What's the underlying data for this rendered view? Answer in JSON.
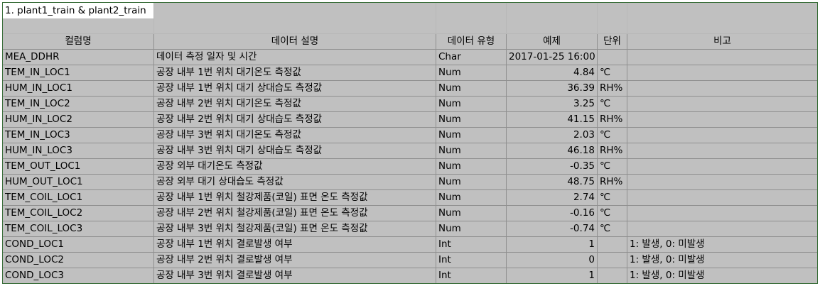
{
  "sheet_title": "1. plant1_train & plant2_train",
  "headers": {
    "column_name": "컬럼명",
    "description": "데이터 설명",
    "data_type": "데이터 유형",
    "example": "예제",
    "unit": "단위",
    "note": "비고"
  },
  "rows": [
    {
      "name": "MEA_DDHR",
      "desc": "데이터 측정 일자 및 시간",
      "type": "Char",
      "example": "2017-01-25 16:00",
      "unit": "",
      "note": ""
    },
    {
      "name": "TEM_IN_LOC1",
      "desc": "공장 내부 1번 위치 대기온도 측정값",
      "type": "Num",
      "example": "4.84",
      "unit": "℃",
      "note": ""
    },
    {
      "name": "HUM_IN_LOC1",
      "desc": "공장 내부 1번 위치 대기 상대습도 측정값",
      "type": "Num",
      "example": "36.39",
      "unit": "RH%",
      "note": ""
    },
    {
      "name": "TEM_IN_LOC2",
      "desc": "공장 내부 2번 위치 대기온도 측정값",
      "type": "Num",
      "example": "3.25",
      "unit": "℃",
      "note": ""
    },
    {
      "name": "HUM_IN_LOC2",
      "desc": "공장 내부 2번 위치 대기 상대습도 측정값",
      "type": "Num",
      "example": "41.15",
      "unit": "RH%",
      "note": ""
    },
    {
      "name": "TEM_IN_LOC3",
      "desc": "공장 내부 3번 위치 대기온도 측정값",
      "type": "Num",
      "example": "2.03",
      "unit": "℃",
      "note": ""
    },
    {
      "name": "HUM_IN_LOC3",
      "desc": "공장 내부 3번 위치 대기 상대습도 측정값",
      "type": "Num",
      "example": "46.18",
      "unit": "RH%",
      "note": ""
    },
    {
      "name": "TEM_OUT_LOC1",
      "desc": "공장 외부 대기온도 측정값",
      "type": "Num",
      "example": "-0.35",
      "unit": "℃",
      "note": ""
    },
    {
      "name": "HUM_OUT_LOC1",
      "desc": "공장 외부 대기 상대습도 측정값",
      "type": "Num",
      "example": "48.75",
      "unit": "RH%",
      "note": ""
    },
    {
      "name": "TEM_COIL_LOC1",
      "desc": "공장 내부 1번 위치 철강제품(코일) 표면 온도 측정값",
      "type": "Num",
      "example": "2.74",
      "unit": "℃",
      "note": ""
    },
    {
      "name": "TEM_COIL_LOC2",
      "desc": "공장 내부 2번 위치 철강제품(코일) 표면 온도 측정값",
      "type": "Num",
      "example": "-0.16",
      "unit": "℃",
      "note": ""
    },
    {
      "name": "TEM_COIL_LOC3",
      "desc": "공장 내부 3번 위치 철강제품(코일) 표면 온도 측정값",
      "type": "Num",
      "example": "-0.74",
      "unit": "℃",
      "note": ""
    },
    {
      "name": "COND_LOC1",
      "desc": "공장 내부 1번 위치 결로발생 여부",
      "type": "Int",
      "example": "1",
      "unit": "",
      "note": "1: 발생, 0: 미발생"
    },
    {
      "name": "COND_LOC2",
      "desc": "공장 내부 2번 위치 결로발생 여부",
      "type": "Int",
      "example": "0",
      "unit": "",
      "note": "1: 발생, 0: 미발생"
    },
    {
      "name": "COND_LOC3",
      "desc": "공장 내부 3번 위치 결로발생 여부",
      "type": "Int",
      "example": "1",
      "unit": "",
      "note": "1: 발생, 0: 미발생"
    }
  ]
}
